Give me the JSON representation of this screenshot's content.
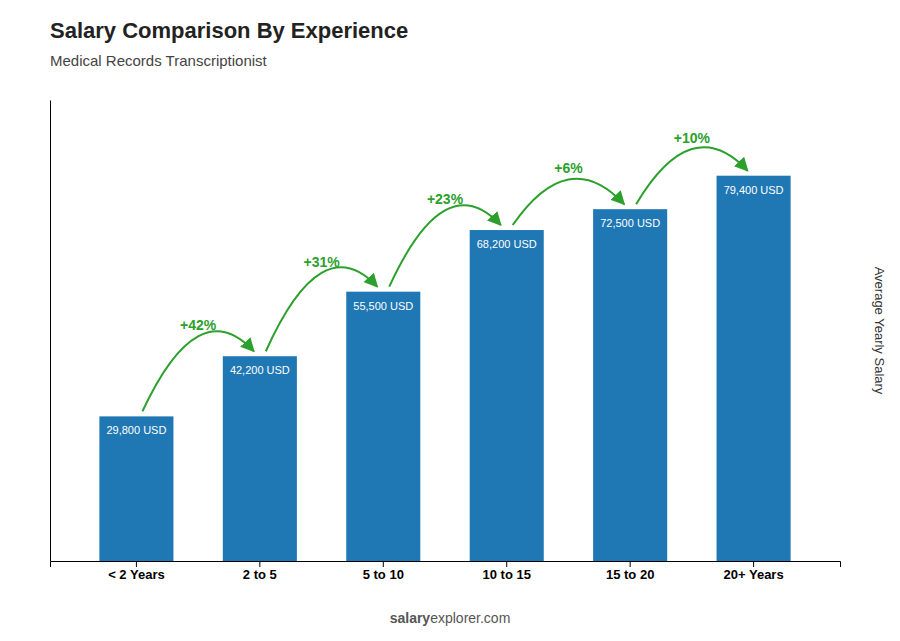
{
  "chart_data": {
    "type": "bar",
    "title": "Salary Comparison By Experience",
    "subtitle": "Medical Records Transcriptionist",
    "ylabel": "Average Yearly Salary",
    "categories": [
      "< 2 Years",
      "2 to 5",
      "5 to 10",
      "10 to 15",
      "15 to 20",
      "20+ Years"
    ],
    "values": [
      29800,
      42200,
      55500,
      68200,
      72500,
      79400
    ],
    "value_labels": [
      "29,800 USD",
      "42,200 USD",
      "55,500 USD",
      "68,200 USD",
      "72,500 USD",
      "79,400 USD"
    ],
    "data_labels": true,
    "annotations": [
      "+42%",
      "+31%",
      "+23%",
      "+6%",
      "+10%"
    ],
    "watermark": [
      "salary",
      "explorer.com"
    ],
    "ylim": [
      0,
      95000
    ],
    "tick_labels": "x",
    "grid": false
  }
}
